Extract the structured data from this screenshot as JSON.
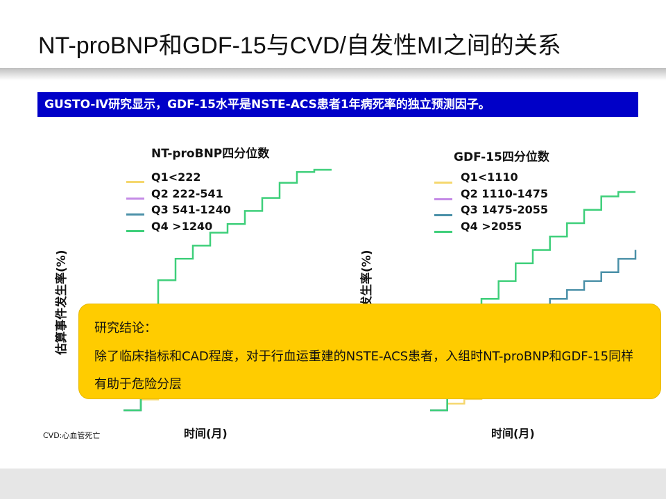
{
  "slide": {
    "title": "NT-proBNP和GDF-15与CVD/自发性MI之间的关系",
    "banner": "GUSTO-Ⅳ研究显示，GDF-15水平是NSTE-ACS患者1年病死率的独立预测因子。",
    "footnote": "CVD:心血管死亡"
  },
  "colors": {
    "banner_bg": "#0000c8",
    "callout_bg": "#ffcc00",
    "q1": "#f5d76e",
    "q2": "#c48ae6",
    "q3": "#4a90a8",
    "q4": "#3ecf7a"
  },
  "callout": {
    "heading": "研究结论：",
    "body": "除了临床指标和CAD程度，对于行血运重建的NSTE-ACS患者，入组时NT-proBNP和GDF-15同样有助于危险分层"
  },
  "chart_data": [
    {
      "type": "line",
      "title": "NT-proBNP四分位数",
      "xlabel": "时间(月)",
      "ylabel": "估算事件发生率(%)",
      "series": [
        {
          "name": "Q1<222",
          "x": [
            0,
            1,
            2,
            3,
            4,
            5,
            6,
            7,
            8,
            9,
            10,
            11,
            12
          ],
          "y": [
            0,
            0.5,
            0.8,
            1.0,
            1.2,
            1.4,
            1.5,
            1.6,
            1.7,
            1.8,
            1.9,
            2.0,
            2.0
          ]
        },
        {
          "name": "Q2 222-541",
          "x": [
            0,
            1,
            2,
            3,
            4,
            5,
            6,
            7,
            8,
            9,
            10,
            11,
            12
          ],
          "y": [
            0,
            1,
            1.6,
            2.1,
            2.5,
            2.9,
            3.2,
            3.5,
            3.8,
            4.1,
            4.4,
            4.6,
            4.7
          ]
        },
        {
          "name": "Q3 541-1240",
          "x": [
            0,
            1,
            2,
            3,
            4,
            5,
            6,
            7,
            8,
            9,
            10,
            11,
            12
          ],
          "y": [
            0,
            0.8,
            1.2,
            1.5,
            1.8,
            2.0,
            2.2,
            2.4,
            2.6,
            2.8,
            3.0,
            3.1,
            3.2
          ]
        },
        {
          "name": "Q4 >1240",
          "x": [
            0,
            1,
            2,
            3,
            4,
            5,
            6,
            7,
            8,
            9,
            10,
            11,
            12
          ],
          "y": [
            0,
            4.5,
            6.0,
            7.0,
            7.6,
            8.2,
            8.6,
            9.2,
            9.8,
            10.5,
            11.0,
            11.1,
            11.1
          ]
        }
      ]
    },
    {
      "type": "line",
      "title": "GDF-15四分位数",
      "xlabel": "时间(月)",
      "ylabel": "估算事件发生率(%)",
      "series": [
        {
          "name": "Q1<1110",
          "x": [
            0,
            1,
            2,
            3,
            4,
            5,
            6,
            7,
            8,
            9,
            10,
            11,
            12
          ],
          "y": [
            0,
            0.3,
            0.5,
            0.7,
            0.8,
            0.9,
            1.0,
            1.1,
            1.2,
            1.3,
            1.3,
            1.4,
            1.4
          ]
        },
        {
          "name": "Q2 1110-1475",
          "x": [
            0,
            1,
            2,
            3,
            4,
            5,
            6,
            7,
            8,
            9,
            10,
            11,
            12
          ],
          "y": [
            0,
            0.6,
            1.0,
            1.3,
            1.6,
            1.8,
            2.0,
            2.2,
            2.3,
            2.5,
            2.6,
            2.7,
            2.8
          ]
        },
        {
          "name": "Q3 1475-2055",
          "x": [
            0,
            1,
            2,
            3,
            4,
            5,
            6,
            7,
            8,
            9,
            10,
            11,
            12
          ],
          "y": [
            0,
            1.5,
            2.5,
            3.2,
            3.8,
            4.2,
            4.6,
            5.0,
            5.4,
            5.8,
            6.2,
            6.8,
            7.2
          ]
        },
        {
          "name": "Q4 >2055",
          "x": [
            0,
            1,
            2,
            3,
            4,
            5,
            6,
            7,
            8,
            9,
            10,
            11,
            12
          ],
          "y": [
            0,
            3.0,
            4.0,
            5.0,
            5.8,
            6.6,
            7.2,
            7.8,
            8.4,
            9.0,
            9.6,
            9.8,
            9.8
          ]
        }
      ]
    }
  ]
}
